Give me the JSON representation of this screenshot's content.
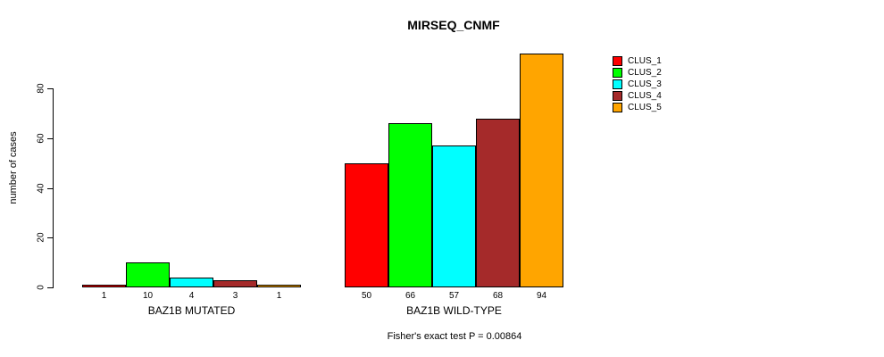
{
  "chart_data": {
    "type": "bar",
    "title": "MIRSEQ_CNMF",
    "ylabel": "number of cases",
    "xlabel": "",
    "footer": "Fisher's exact test P = 0.00864",
    "yticks": [
      0,
      20,
      40,
      60,
      80
    ],
    "ylim": [
      0,
      96
    ],
    "grid": false,
    "legend_position": "right",
    "categories": [
      "CLUS_1",
      "CLUS_2",
      "CLUS_3",
      "CLUS_4",
      "CLUS_5"
    ],
    "colors": [
      "#ff0000",
      "#00ff00",
      "#00ffff",
      "#a52a2a",
      "#ffa500"
    ],
    "groups": [
      {
        "label": "BAZ1B MUTATED",
        "values": [
          1,
          10,
          4,
          3,
          1
        ]
      },
      {
        "label": "BAZ1B WILD-TYPE",
        "values": [
          50,
          66,
          57,
          68,
          94
        ]
      }
    ]
  }
}
